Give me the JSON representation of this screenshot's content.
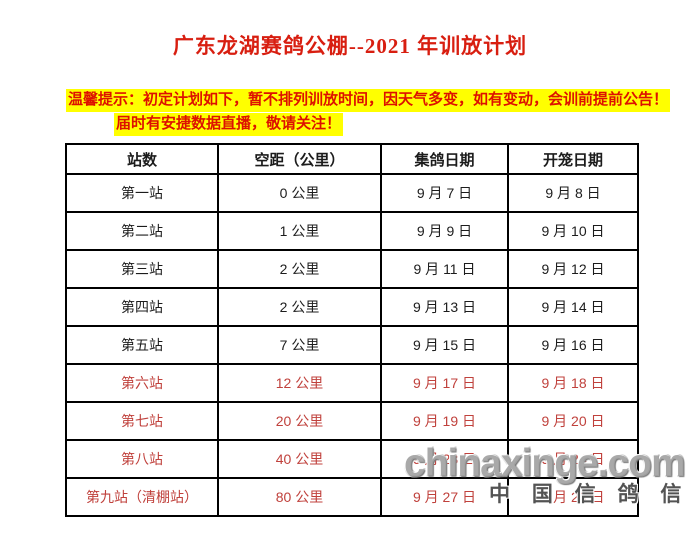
{
  "page": {
    "title": "广东龙湖赛鸽公棚--2021 年训放计划"
  },
  "notice": {
    "line1": "温馨提示：初定计划如下，暂不排列训放时间，因天气多变，如有变动，会训前提前公告！",
    "line2": "届时有安捷数据直播，敬请关注！"
  },
  "table": {
    "headers": [
      "站数",
      "空距（公里）",
      "集鸽日期",
      "开笼日期"
    ],
    "rows": [
      {
        "station": "第一站",
        "distance": "0 公里",
        "collect": "9 月 7 日",
        "release": "9 月 8 日",
        "highlight": false
      },
      {
        "station": "第二站",
        "distance": "1 公里",
        "collect": "9 月 9 日",
        "release": "9 月 10 日",
        "highlight": false
      },
      {
        "station": "第三站",
        "distance": "2 公里",
        "collect": "9 月 11 日",
        "release": "9 月 12 日",
        "highlight": false
      },
      {
        "station": "第四站",
        "distance": "2 公里",
        "collect": "9 月 13 日",
        "release": "9 月 14 日",
        "highlight": false
      },
      {
        "station": "第五站",
        "distance": "7 公里",
        "collect": "9 月 15 日",
        "release": "9 月 16 日",
        "highlight": false
      },
      {
        "station": "第六站",
        "distance": "12 公里",
        "collect": "9 月 17 日",
        "release": "9 月 18 日",
        "highlight": true
      },
      {
        "station": "第七站",
        "distance": "20 公里",
        "collect": "9 月 19 日",
        "release": "9 月 20 日",
        "highlight": true
      },
      {
        "station": "第八站",
        "distance": "40 公里",
        "collect": "9 月 23 日",
        "release": "9 月 24 日",
        "highlight": true
      },
      {
        "station": "第九站（清棚站）",
        "distance": "80 公里",
        "collect": "9 月 27 日",
        "release": "9 月 28 日",
        "highlight": true
      }
    ]
  },
  "watermark": {
    "site": "chinaxinge.com",
    "site_cn": "中 国 信 鸽 信 息 网"
  },
  "colors": {
    "title_red": "#d81e10",
    "notice_red": "#dd1100",
    "notice_highlight": "#ffff00",
    "row_red": "#c0413c",
    "text_black": "#1c1c1c",
    "table_border": "#000000",
    "watermark_gray": "#a3a3a3"
  }
}
